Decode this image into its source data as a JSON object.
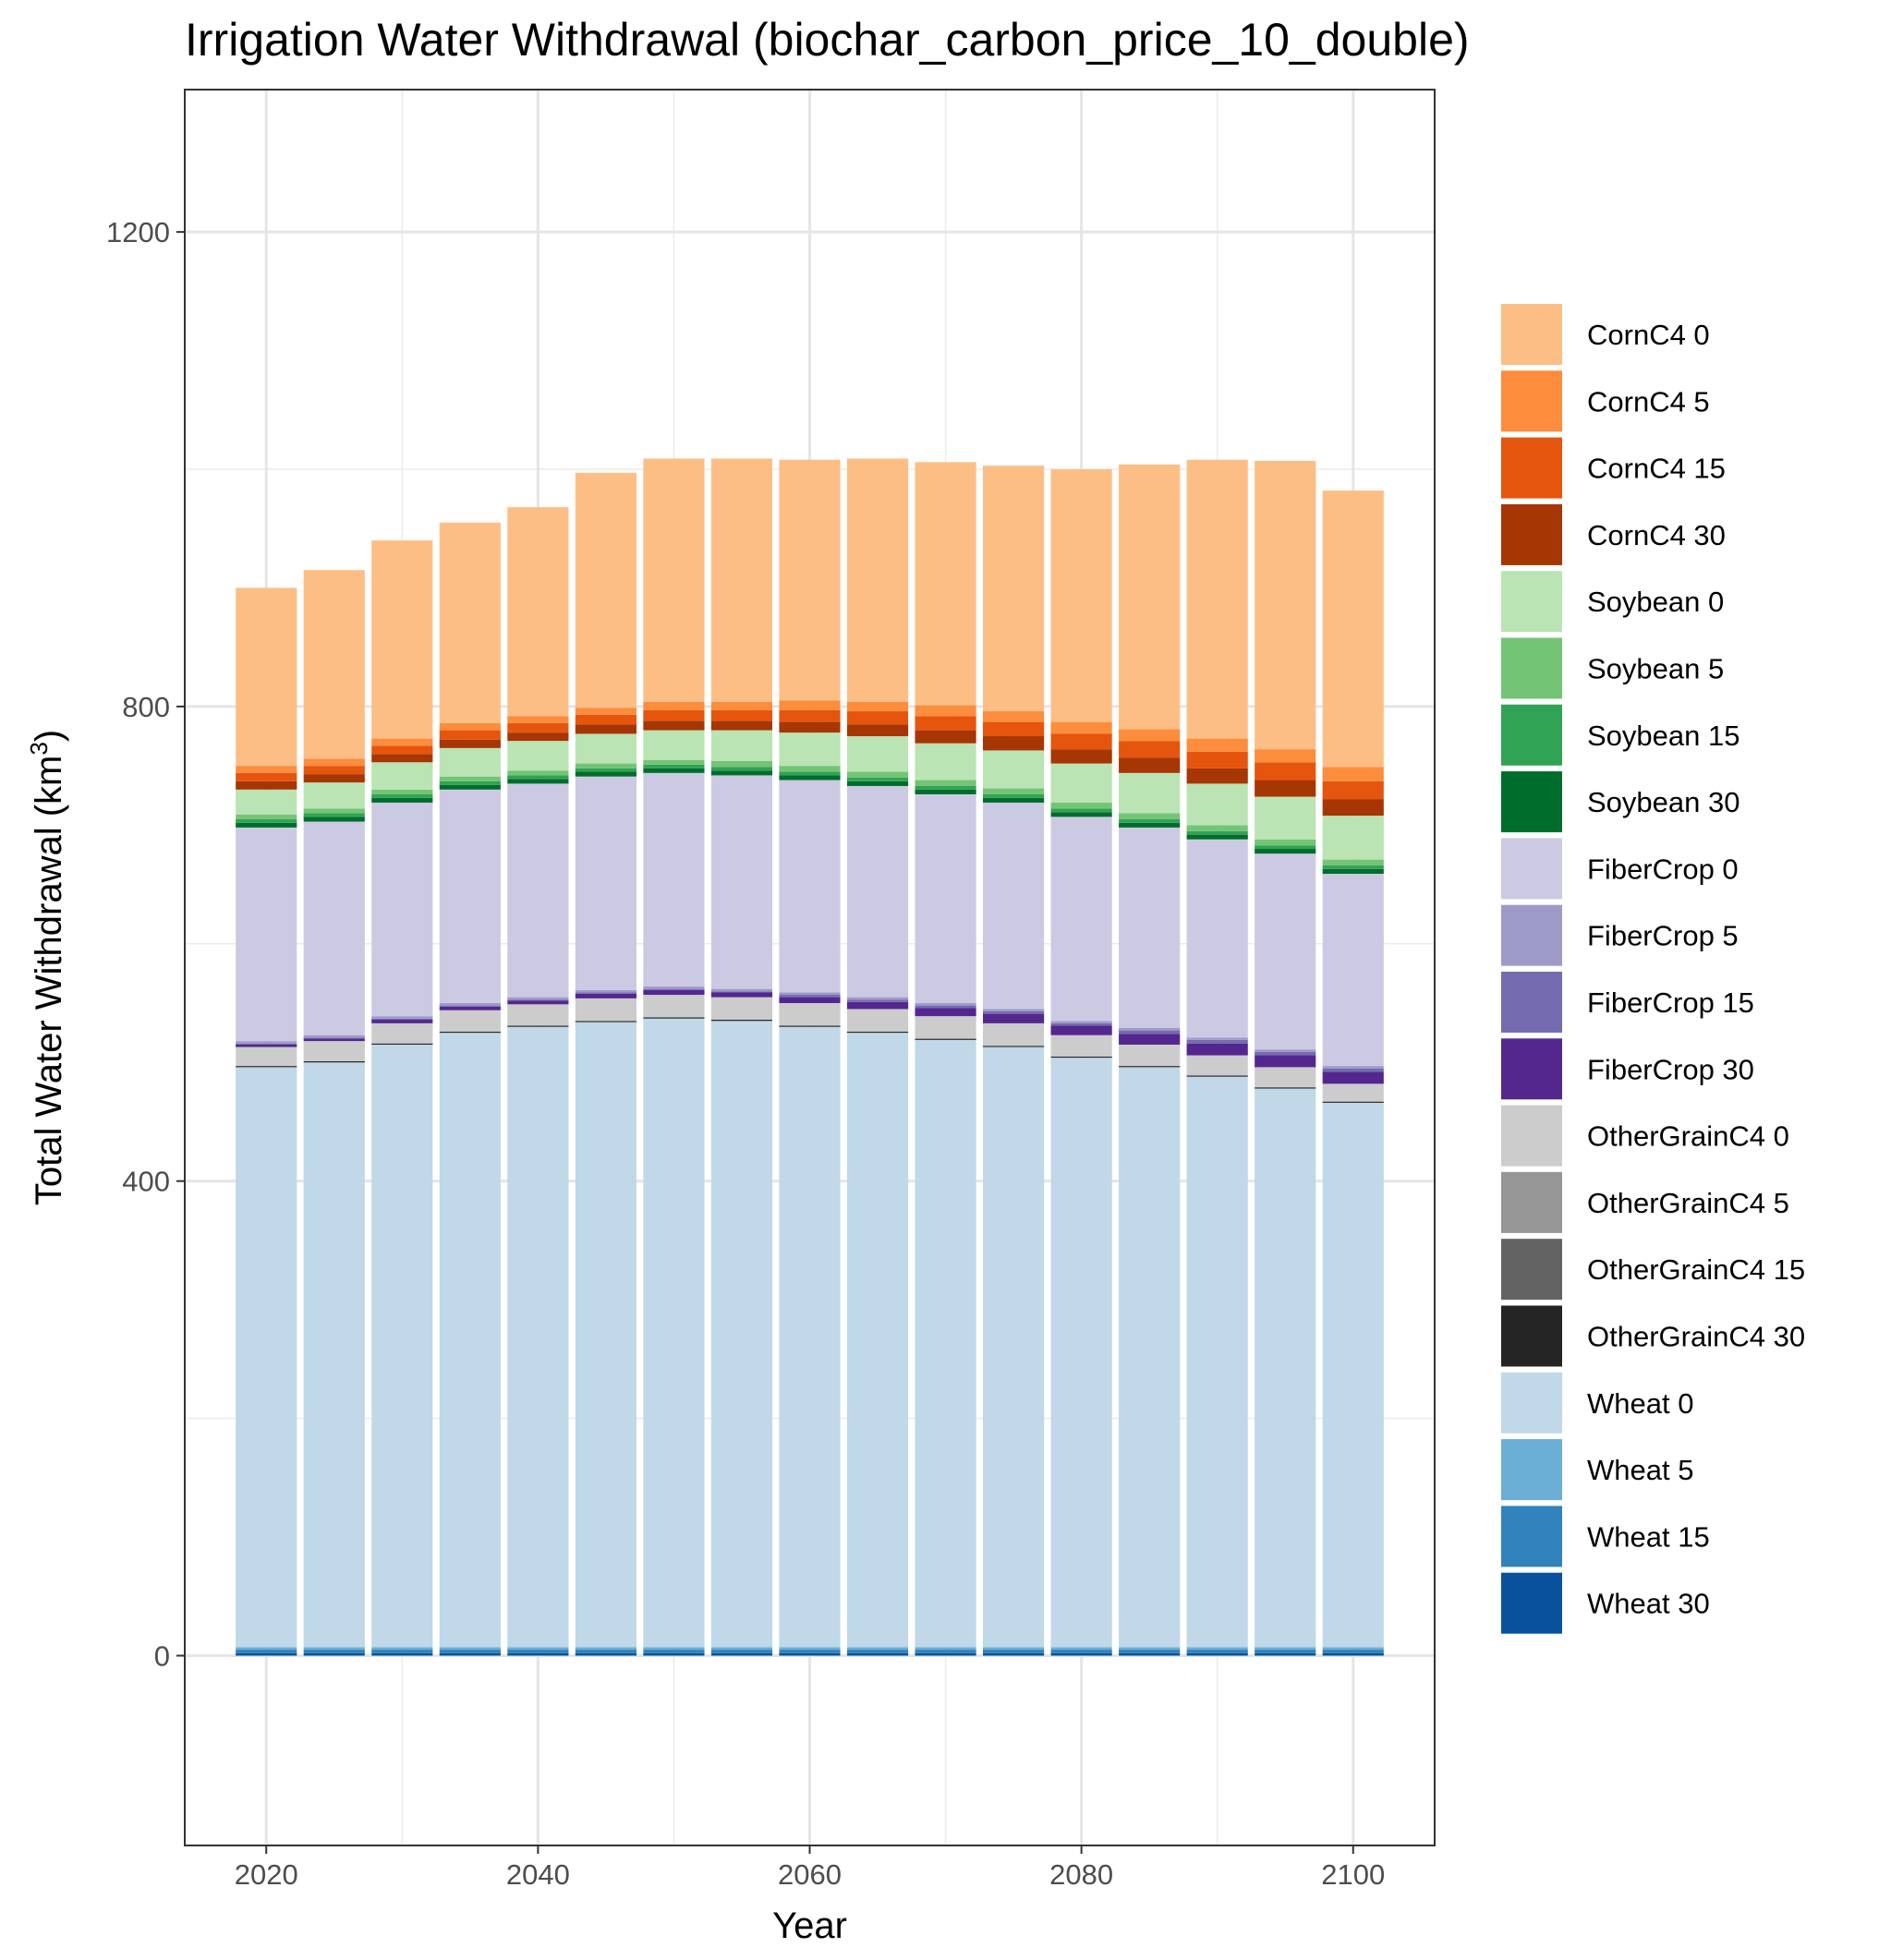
{
  "chart_data": {
    "type": "bar",
    "stacked": true,
    "title": "Irrigation Water Withdrawal (biochar_carbon_price_10_double)",
    "xlabel": "Year",
    "ylabel_text": "Total Water Withdrawal (km",
    "ylabel_superscript": "3",
    "ylabel_close": ")",
    "xlim": [
      2014,
      2106
    ],
    "ylim": [
      -160,
      1320
    ],
    "x_ticks": [
      2020,
      2040,
      2060,
      2080,
      2100
    ],
    "y_ticks": [
      0,
      400,
      800,
      1200
    ],
    "y_minor_gridlines": [
      200,
      600,
      1000
    ],
    "x_minor_gridlines": [
      2030,
      2050,
      2070,
      2090
    ],
    "grid": true,
    "legend_position": "right",
    "x": [
      2020,
      2025,
      2030,
      2035,
      2040,
      2045,
      2050,
      2055,
      2060,
      2065,
      2070,
      2075,
      2080,
      2085,
      2090,
      2095,
      2100
    ],
    "series": [
      {
        "name": "Wheat 30",
        "color": "#08519c",
        "values": [
          2,
          2,
          2,
          2,
          2,
          2,
          2,
          2,
          2,
          2,
          2,
          2,
          2,
          2,
          2,
          2,
          2
        ]
      },
      {
        "name": "Wheat 15",
        "color": "#3182bd",
        "values": [
          3,
          3,
          3,
          3,
          3,
          3,
          3,
          3,
          3,
          3,
          3,
          3,
          3,
          3,
          3,
          3,
          3
        ]
      },
      {
        "name": "Wheat 5",
        "color": "#6baed6",
        "values": [
          2,
          2,
          2,
          2,
          2,
          2,
          2,
          2,
          2,
          2,
          2,
          2,
          2,
          2,
          2,
          2,
          2
        ]
      },
      {
        "name": "Wheat 0",
        "color": "#c0d8e7",
        "values": [
          489,
          493,
          508,
          518,
          523,
          527,
          530,
          528,
          523,
          518,
          512,
          506,
          497,
          489,
          481,
          471,
          459
        ]
      },
      {
        "name": "OtherGrainC4 30",
        "color": "#252525",
        "values": [
          1,
          1,
          1,
          1,
          1,
          1,
          1,
          1,
          1,
          1,
          1,
          1,
          1,
          1,
          1,
          1,
          1
        ]
      },
      {
        "name": "OtherGrainC4 15",
        "color": "#636363",
        "values": [
          0,
          0,
          0,
          0,
          0,
          0,
          0,
          0,
          0,
          0,
          0,
          0,
          0,
          0,
          0,
          0,
          0
        ]
      },
      {
        "name": "OtherGrainC4 5",
        "color": "#969696",
        "values": [
          0,
          0,
          0,
          0,
          0,
          0,
          0,
          0,
          0,
          0,
          0,
          0,
          0,
          0,
          0,
          0,
          0
        ]
      },
      {
        "name": "OtherGrainC4 0",
        "color": "#cccccc",
        "values": [
          16,
          17,
          17,
          18,
          18,
          19,
          19,
          19,
          19,
          19,
          19,
          19,
          18,
          18,
          17,
          17,
          15
        ]
      },
      {
        "name": "FiberCrop 30",
        "color": "#54278f",
        "values": [
          2,
          2,
          3,
          3,
          3,
          4,
          4,
          4,
          5,
          6,
          7,
          8,
          8,
          9,
          10,
          10,
          10
        ]
      },
      {
        "name": "FiberCrop 15",
        "color": "#756bb1",
        "values": [
          1,
          1,
          1,
          1,
          1,
          1,
          1,
          1,
          2,
          2,
          2,
          2,
          2,
          3,
          3,
          3,
          3
        ]
      },
      {
        "name": "FiberCrop 5",
        "color": "#9e9ac8",
        "values": [
          2,
          2,
          2,
          2,
          2,
          2,
          2,
          2,
          2,
          2,
          2,
          2,
          2,
          2,
          2,
          2,
          2
        ]
      },
      {
        "name": "FiberCrop 0",
        "color": "#cccae2",
        "values": [
          180,
          180,
          180,
          180,
          180,
          180,
          180,
          180,
          179,
          178,
          176,
          174,
          172,
          169,
          167,
          165,
          162
        ]
      },
      {
        "name": "Soybean 30",
        "color": "#006d2c",
        "values": [
          4,
          4,
          4,
          4,
          4,
          4,
          4,
          4,
          4,
          4,
          4,
          4,
          4,
          4,
          4,
          4,
          4
        ]
      },
      {
        "name": "Soybean 15",
        "color": "#31a354",
        "values": [
          3,
          3,
          3,
          3,
          3,
          3,
          3,
          3,
          3,
          3,
          3,
          3,
          3,
          3,
          3,
          3,
          3
        ]
      },
      {
        "name": "Soybean 5",
        "color": "#74c476",
        "values": [
          4,
          4,
          4,
          4,
          4,
          4,
          4,
          5,
          5,
          5,
          5,
          5,
          5,
          5,
          5,
          5,
          5
        ]
      },
      {
        "name": "Soybean 0",
        "color": "#bae4b3",
        "values": [
          21,
          22,
          23,
          24,
          25,
          25,
          25,
          26,
          28,
          30,
          31,
          32,
          33,
          34,
          35,
          36,
          37
        ]
      },
      {
        "name": "CornC4 30",
        "color": "#a63603",
        "values": [
          7,
          7,
          7,
          7,
          7,
          8,
          8,
          8,
          9,
          10,
          11,
          12,
          12,
          13,
          13,
          14,
          14
        ]
      },
      {
        "name": "CornC4 15",
        "color": "#e6550d",
        "values": [
          7,
          7,
          7,
          8,
          8,
          8,
          9,
          9,
          10,
          11,
          12,
          12,
          13,
          14,
          14,
          15,
          15
        ]
      },
      {
        "name": "CornC4 5",
        "color": "#fd8d3c",
        "values": [
          6,
          6,
          6,
          6,
          6,
          6,
          7,
          7,
          8,
          8,
          9,
          9,
          10,
          10,
          11,
          11,
          12
        ]
      },
      {
        "name": "CornC4 0",
        "color": "#fdbe85",
        "values": [
          150,
          159,
          167,
          169,
          176,
          198,
          205,
          205,
          203,
          205,
          205,
          207,
          213,
          223,
          235,
          243,
          233
        ]
      }
    ],
    "legend_order": [
      "CornC4 0",
      "CornC4 5",
      "CornC4 15",
      "CornC4 30",
      "Soybean 0",
      "Soybean 5",
      "Soybean 15",
      "Soybean 30",
      "FiberCrop 0",
      "FiberCrop 5",
      "FiberCrop 15",
      "FiberCrop 30",
      "OtherGrainC4 0",
      "OtherGrainC4 5",
      "OtherGrainC4 15",
      "OtherGrainC4 30",
      "Wheat 0",
      "Wheat 5",
      "Wheat 15",
      "Wheat 30"
    ]
  }
}
